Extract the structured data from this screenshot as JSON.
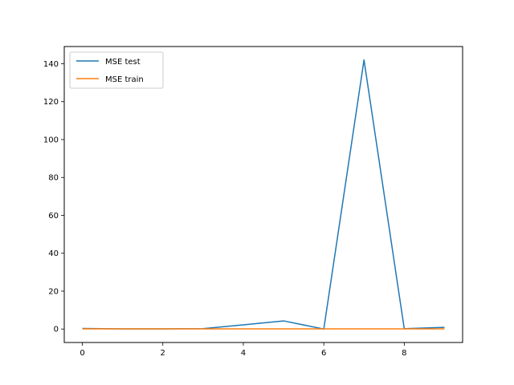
{
  "chart_data": {
    "type": "line",
    "x": [
      0,
      1,
      2,
      3,
      4,
      5,
      6,
      7,
      8,
      9
    ],
    "series": [
      {
        "name": "MSE test",
        "color": "#1f77b4",
        "values": [
          0.3,
          0.1,
          0.1,
          0.2,
          2.2,
          4.3,
          0.0,
          142.0,
          0.2,
          0.9
        ]
      },
      {
        "name": "MSE train",
        "color": "#ff7f0e",
        "values": [
          0.1,
          0.1,
          0.1,
          0.1,
          0.1,
          0.1,
          0.1,
          0.1,
          0.1,
          0.1
        ]
      }
    ],
    "xlim": [
      -0.45,
      9.45
    ],
    "ylim": [
      -7.1,
      149.1
    ],
    "xticks": [
      0,
      2,
      4,
      6,
      8
    ],
    "yticks": [
      0,
      20,
      40,
      60,
      80,
      100,
      120,
      140
    ],
    "title": "",
    "xlabel": "",
    "ylabel": "",
    "grid": false,
    "legend": "upper-left"
  }
}
